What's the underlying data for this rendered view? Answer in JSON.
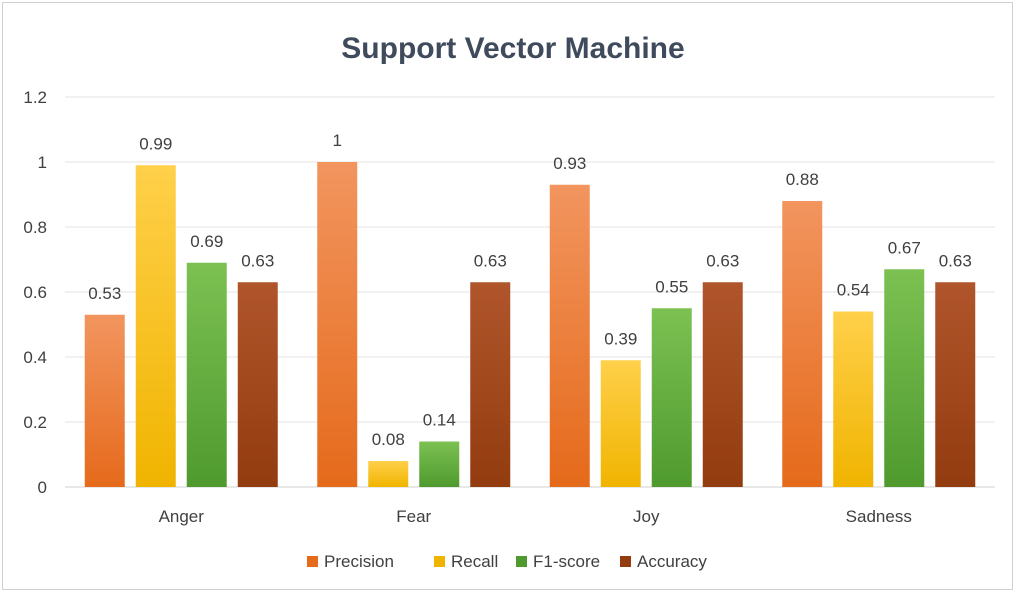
{
  "chart_data": {
    "type": "bar",
    "title": "Support Vector Machine",
    "categories": [
      "Anger",
      "Fear",
      "Joy",
      "Sadness"
    ],
    "series": [
      {
        "name": "Precision",
        "values": [
          0.53,
          1,
          0.93,
          0.88
        ],
        "labels": [
          "0.53",
          "1",
          "0.93",
          "0.88"
        ],
        "color_top": "#f2955f",
        "color_bottom": "#e56a1b"
      },
      {
        "name": "Recall",
        "values": [
          0.99,
          0.08,
          0.39,
          0.54
        ],
        "labels": [
          "0.99",
          "0.08",
          "0.39",
          "0.54"
        ],
        "color_top": "#ffd04a",
        "color_bottom": "#f0b400"
      },
      {
        "name": "F1-score",
        "values": [
          0.69,
          0.14,
          0.55,
          0.67
        ],
        "labels": [
          "0.69",
          "0.14",
          "0.55",
          "0.67"
        ],
        "color_top": "#7cc152",
        "color_bottom": "#4f9a2e"
      },
      {
        "name": "Accuracy",
        "values": [
          0.63,
          0.63,
          0.63,
          0.63
        ],
        "labels": [
          "0.63",
          "0.63",
          "0.63",
          "0.63"
        ],
        "color_top": "#b0552b",
        "color_bottom": "#933c10"
      }
    ],
    "ylim": [
      0,
      1.2
    ],
    "yticks": [
      "0",
      "0.2",
      "0.4",
      "0.6",
      "0.8",
      "1",
      "1.2"
    ],
    "ytick_values": [
      0,
      0.2,
      0.4,
      0.6,
      0.8,
      1.0,
      1.2
    ],
    "grid": true,
    "legend_position": "bottom",
    "xlabel": "",
    "ylabel": ""
  }
}
